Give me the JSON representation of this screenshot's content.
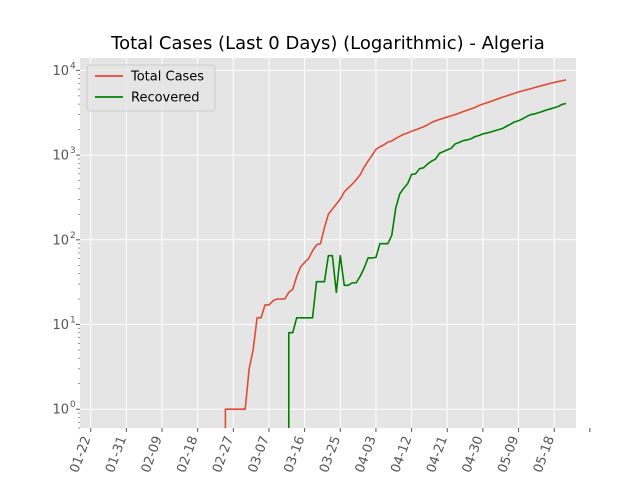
{
  "chart_data": {
    "type": "line",
    "title": "Total Cases (Last 0 Days) (Logarithmic) - Algeria",
    "xlabel": "",
    "ylabel": "",
    "y_scale": "log",
    "ylim": [
      0.6,
      14000
    ],
    "x_tick_labels": [
      "01-22",
      "01-31",
      "02-09",
      "02-18",
      "02-27",
      "03-07",
      "03-16",
      "03-25",
      "04-03",
      "04-12",
      "04-21",
      "04-30",
      "05-09",
      "05-18"
    ],
    "y_tick_labels": [
      "10^0",
      "10^1",
      "10^2",
      "10^3",
      "10^4"
    ],
    "y_tick_values": [
      1,
      10,
      100,
      1000,
      10000
    ],
    "legend_placement": "top-left",
    "grid": true,
    "colors": {
      "background": "#e5e5e5",
      "grid": "#ffffff"
    },
    "series": [
      {
        "name": "Total Cases",
        "color": "#e24a33",
        "points": [
          [
            "2020-02-25",
            1
          ],
          [
            "2020-03-01",
            1
          ],
          [
            "2020-03-02",
            3
          ],
          [
            "2020-03-03",
            5
          ],
          [
            "2020-03-04",
            12
          ],
          [
            "2020-03-05",
            12
          ],
          [
            "2020-03-06",
            17
          ],
          [
            "2020-03-07",
            17
          ],
          [
            "2020-03-08",
            19
          ],
          [
            "2020-03-09",
            20
          ],
          [
            "2020-03-10",
            20
          ],
          [
            "2020-03-11",
            20
          ],
          [
            "2020-03-12",
            24
          ],
          [
            "2020-03-13",
            26
          ],
          [
            "2020-03-14",
            37
          ],
          [
            "2020-03-15",
            48
          ],
          [
            "2020-03-16",
            54
          ],
          [
            "2020-03-17",
            60
          ],
          [
            "2020-03-18",
            74
          ],
          [
            "2020-03-19",
            87
          ],
          [
            "2020-03-20",
            90
          ],
          [
            "2020-03-21",
            139
          ],
          [
            "2020-03-22",
            201
          ],
          [
            "2020-03-23",
            230
          ],
          [
            "2020-03-24",
            264
          ],
          [
            "2020-03-25",
            302
          ],
          [
            "2020-03-26",
            367
          ],
          [
            "2020-03-27",
            409
          ],
          [
            "2020-03-28",
            454
          ],
          [
            "2020-03-29",
            511
          ],
          [
            "2020-03-30",
            584
          ],
          [
            "2020-03-31",
            716
          ],
          [
            "2020-04-01",
            847
          ],
          [
            "2020-04-02",
            986
          ],
          [
            "2020-04-03",
            1171
          ],
          [
            "2020-04-04",
            1251
          ],
          [
            "2020-04-05",
            1320
          ],
          [
            "2020-04-06",
            1423
          ],
          [
            "2020-04-07",
            1468
          ],
          [
            "2020-04-08",
            1572
          ],
          [
            "2020-04-09",
            1666
          ],
          [
            "2020-04-10",
            1761
          ],
          [
            "2020-04-11",
            1825
          ],
          [
            "2020-04-12",
            1914
          ],
          [
            "2020-04-13",
            1983
          ],
          [
            "2020-04-14",
            2070
          ],
          [
            "2020-04-15",
            2160
          ],
          [
            "2020-04-16",
            2268
          ],
          [
            "2020-04-17",
            2418
          ],
          [
            "2020-04-18",
            2534
          ],
          [
            "2020-04-19",
            2629
          ],
          [
            "2020-04-20",
            2718
          ],
          [
            "2020-04-21",
            2811
          ],
          [
            "2020-04-22",
            2910
          ],
          [
            "2020-04-23",
            3007
          ],
          [
            "2020-04-24",
            3127
          ],
          [
            "2020-04-25",
            3256
          ],
          [
            "2020-04-26",
            3382
          ],
          [
            "2020-04-27",
            3517
          ],
          [
            "2020-04-28",
            3649
          ],
          [
            "2020-04-29",
            3848
          ],
          [
            "2020-04-30",
            4006
          ],
          [
            "2020-05-01",
            4154
          ],
          [
            "2020-05-02",
            4295
          ],
          [
            "2020-05-03",
            4474
          ],
          [
            "2020-05-04",
            4648
          ],
          [
            "2020-05-05",
            4838
          ],
          [
            "2020-05-06",
            4997
          ],
          [
            "2020-05-07",
            5182
          ],
          [
            "2020-05-08",
            5369
          ],
          [
            "2020-05-09",
            5558
          ],
          [
            "2020-05-10",
            5723
          ],
          [
            "2020-05-11",
            5891
          ],
          [
            "2020-05-12",
            6067
          ],
          [
            "2020-05-13",
            6253
          ],
          [
            "2020-05-14",
            6442
          ],
          [
            "2020-05-15",
            6629
          ],
          [
            "2020-05-16",
            6821
          ],
          [
            "2020-05-17",
            7019
          ],
          [
            "2020-05-18",
            7201
          ],
          [
            "2020-05-19",
            7377
          ],
          [
            "2020-05-20",
            7542
          ],
          [
            "2020-05-21",
            7728
          ]
        ]
      },
      {
        "name": "Recovered",
        "color": "#008000",
        "points": [
          [
            "2020-03-12",
            8
          ],
          [
            "2020-03-13",
            8
          ],
          [
            "2020-03-14",
            12
          ],
          [
            "2020-03-15",
            12
          ],
          [
            "2020-03-16",
            12
          ],
          [
            "2020-03-17",
            12
          ],
          [
            "2020-03-18",
            12
          ],
          [
            "2020-03-19",
            32
          ],
          [
            "2020-03-20",
            32
          ],
          [
            "2020-03-21",
            32
          ],
          [
            "2020-03-22",
            65
          ],
          [
            "2020-03-23",
            65
          ],
          [
            "2020-03-24",
            24
          ],
          [
            "2020-03-25",
            65
          ],
          [
            "2020-03-26",
            29
          ],
          [
            "2020-03-27",
            29
          ],
          [
            "2020-03-28",
            31
          ],
          [
            "2020-03-29",
            31
          ],
          [
            "2020-03-30",
            37
          ],
          [
            "2020-03-31",
            46
          ],
          [
            "2020-04-01",
            61
          ],
          [
            "2020-04-02",
            61
          ],
          [
            "2020-04-03",
            62
          ],
          [
            "2020-04-04",
            90
          ],
          [
            "2020-04-05",
            90
          ],
          [
            "2020-04-06",
            90
          ],
          [
            "2020-04-07",
            113
          ],
          [
            "2020-04-08",
            237
          ],
          [
            "2020-04-09",
            347
          ],
          [
            "2020-04-10",
            405
          ],
          [
            "2020-04-11",
            460
          ],
          [
            "2020-04-12",
            591
          ],
          [
            "2020-04-13",
            601
          ],
          [
            "2020-04-14",
            691
          ],
          [
            "2020-04-15",
            708
          ],
          [
            "2020-04-16",
            783
          ],
          [
            "2020-04-17",
            846
          ],
          [
            "2020-04-18",
            894
          ],
          [
            "2020-04-19",
            1047
          ],
          [
            "2020-04-20",
            1099
          ],
          [
            "2020-04-21",
            1152
          ],
          [
            "2020-04-22",
            1204
          ],
          [
            "2020-04-23",
            1355
          ],
          [
            "2020-04-24",
            1408
          ],
          [
            "2020-04-25",
            1479
          ],
          [
            "2020-04-26",
            1508
          ],
          [
            "2020-04-27",
            1558
          ],
          [
            "2020-04-28",
            1651
          ],
          [
            "2020-04-29",
            1702
          ],
          [
            "2020-04-30",
            1779
          ],
          [
            "2020-05-01",
            1821
          ],
          [
            "2020-05-02",
            1872
          ],
          [
            "2020-05-03",
            1936
          ],
          [
            "2020-05-04",
            1998
          ],
          [
            "2020-05-05",
            2067
          ],
          [
            "2020-05-06",
            2197
          ],
          [
            "2020-05-07",
            2323
          ],
          [
            "2020-05-08",
            2467
          ],
          [
            "2020-05-09",
            2546
          ],
          [
            "2020-05-10",
            2678
          ],
          [
            "2020-05-11",
            2841
          ],
          [
            "2020-05-12",
            2998
          ],
          [
            "2020-05-13",
            3058
          ],
          [
            "2020-05-14",
            3158
          ],
          [
            "2020-05-15",
            3271
          ],
          [
            "2020-05-16",
            3409
          ],
          [
            "2020-05-17",
            3507
          ],
          [
            "2020-05-18",
            3625
          ],
          [
            "2020-05-19",
            3746
          ],
          [
            "2020-05-20",
            3968
          ],
          [
            "2020-05-21",
            4062
          ]
        ]
      }
    ]
  }
}
